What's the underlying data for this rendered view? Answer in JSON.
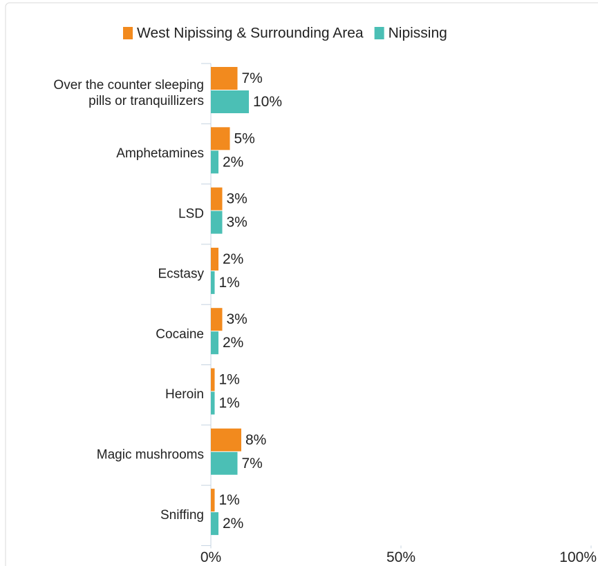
{
  "chart_data": {
    "type": "bar",
    "orientation": "horizontal",
    "categories": [
      "Over the counter sleeping pills or tranquillizers",
      "Amphetamines",
      "LSD",
      "Ecstasy",
      "Cocaine",
      "Heroin",
      "Magic mushrooms",
      "Sniffing"
    ],
    "series": [
      {
        "name": "West Nipissing & Surrounding Area",
        "color": "#f28a1e",
        "values": [
          7,
          5,
          3,
          2,
          3,
          1,
          8,
          1
        ],
        "value_labels": [
          "7%",
          "5%",
          "3%",
          "2%",
          "3%",
          "1%",
          "8%",
          "1%"
        ]
      },
      {
        "name": "Nipissing",
        "color": "#4bbfb5",
        "values": [
          10,
          2,
          3,
          1,
          2,
          1,
          7,
          2
        ],
        "value_labels": [
          "10%",
          "2%",
          "3%",
          "1%",
          "2%",
          "1%",
          "7%",
          "2%"
        ]
      }
    ],
    "xlim": [
      0,
      100
    ],
    "xticks": [
      {
        "value": 0,
        "label": "0%"
      },
      {
        "value": 50,
        "label": "50%"
      },
      {
        "value": 100,
        "label": "100%"
      }
    ],
    "legend": "top"
  }
}
